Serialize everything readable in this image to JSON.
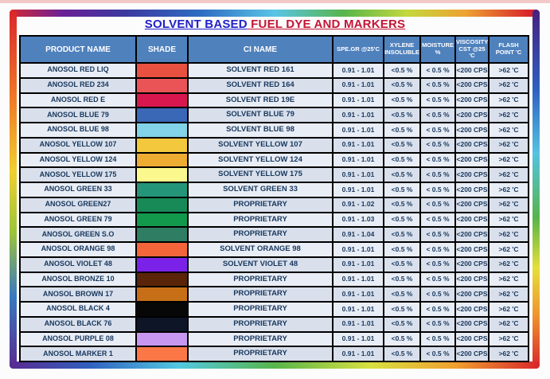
{
  "title": {
    "part1": "SOLVENT BASED",
    "part2": " FUEL DYE AND MARKERS"
  },
  "colors": {
    "title_blue": "#2121c9",
    "title_red": "#c41535",
    "header_bg": "#4f81bd",
    "header_text": "#ffffff",
    "row_odd_bg": "#e9edf5",
    "row_even_bg": "#d9e0ec",
    "cell_text": "#17375d",
    "grid_line": "#000000"
  },
  "table": {
    "headers": [
      "PRODUCT NAME",
      "SHADE",
      "CI NAME",
      "SPE.GR @25'C",
      "XYLENE INSOLUBLE",
      "MOISTURE %",
      "VISCOSITY CST @25 'C",
      "FLASH POINT 'C"
    ],
    "rows": [
      {
        "product": "ANOSOL RED LIQ",
        "shade": "#e8503f",
        "ci": "SOLVENT RED 161",
        "spe_gr": "0.91 - 1.01",
        "xylene": "<0.5 %",
        "moisture": "< 0.5 %",
        "viscosity": "<200 CPS",
        "flash": ">62 'C"
      },
      {
        "product": "ANOSOL RED  234",
        "shade": "#ea5456",
        "ci": "SOLVENT RED 164",
        "spe_gr": "0.91 - 1.01",
        "xylene": "<0.5 %",
        "moisture": "< 0.5 %",
        "viscosity": "<200 CPS",
        "flash": ">62 'C"
      },
      {
        "product": "ANOSOL RED E",
        "shade": "#d8174e",
        "ci": "SOLVENT RED 19E",
        "spe_gr": "0.91 - 1.01",
        "xylene": "<0.5 %",
        "moisture": "< 0.5 %",
        "viscosity": "<200 CPS",
        "flash": ">62 'C"
      },
      {
        "product": "ANOSOL BLUE 79",
        "shade": "#3a67b6",
        "ci": "SOLVENT BLUE 79",
        "spe_gr": "0.91 - 1.01",
        "xylene": "<0.5 %",
        "moisture": "< 0.5 %",
        "viscosity": "<200 CPS",
        "flash": ">62 'C"
      },
      {
        "product": "ANOSOL BLUE 98",
        "shade": "#82d2e8",
        "ci": "SOLVENT BLUE 98",
        "spe_gr": "0.91 - 1.01",
        "xylene": "<0.5 %",
        "moisture": "< 0.5 %",
        "viscosity": "<200 CPS",
        "flash": ">62 'C"
      },
      {
        "product": "ANOSOL YELLOW 107",
        "shade": "#f4c83c",
        "ci": "SOLVENT YELLOW 107",
        "spe_gr": "0.91 - 1.01",
        "xylene": "<0.5 %",
        "moisture": "< 0.5 %",
        "viscosity": "<200 CPS",
        "flash": ">62 'C"
      },
      {
        "product": "ANOSOL YELLOW 124",
        "shade": "#efac33",
        "ci": "SOLVENT YELLOW 124",
        "spe_gr": "0.91 - 1.01",
        "xylene": "<0.5 %",
        "moisture": "< 0.5 %",
        "viscosity": "<200 CPS",
        "flash": ">62 'C"
      },
      {
        "product": "ANOSOL YELLOW 175",
        "shade": "#fbf88e",
        "ci": "SOLVENT YELLOW 175",
        "spe_gr": "0.91 - 1.01",
        "xylene": "<0.5 %",
        "moisture": "< 0.5 %",
        "viscosity": "<200 CPS",
        "flash": ">62 'C"
      },
      {
        "product": "ANOSOL GREEN 33",
        "shade": "#249579",
        "ci": "SOLVENT GREEN 33",
        "spe_gr": "0.91 - 1.01",
        "xylene": "<0.5 %",
        "moisture": "< 0.5 %",
        "viscosity": "<200 CPS",
        "flash": ">62 'C"
      },
      {
        "product": "ANOSOL GREEN27",
        "shade": "#178a57",
        "ci": "PROPRIETARY",
        "spe_gr": "0.91 - 1.02",
        "xylene": "<0.5 %",
        "moisture": "< 0.5 %",
        "viscosity": "<200 CPS",
        "flash": ">62 'C"
      },
      {
        "product": "ANOSOL GREEN  79",
        "shade": "#12994c",
        "ci": "PROPRIETARY",
        "spe_gr": "0.91 - 1.03",
        "xylene": "<0.5 %",
        "moisture": "< 0.5 %",
        "viscosity": "<200 CPS",
        "flash": ">62 'C"
      },
      {
        "product": "ANOSOL GREEN S.O",
        "shade": "#2f7d63",
        "ci": "PROPRIETARY",
        "spe_gr": "0.91 - 1.04",
        "xylene": "<0.5 %",
        "moisture": "< 0.5 %",
        "viscosity": "<200 CPS",
        "flash": ">62 'C"
      },
      {
        "product": "ANOSOL ORANGE 98",
        "shade": "#f4663a",
        "ci": "SOLVENT ORANGE 98",
        "spe_gr": "0.91 - 1.01",
        "xylene": "<0.5 %",
        "moisture": "< 0.5 %",
        "viscosity": "<200 CPS",
        "flash": ">62 'C"
      },
      {
        "product": "ANOSOL VIOLET 48",
        "shade": "#7b22e8",
        "ci": "SOLVENT VIOLET 48",
        "spe_gr": "0.91 - 1.01",
        "xylene": "<0.5 %",
        "moisture": "< 0.5 %",
        "viscosity": "<200 CPS",
        "flash": ">62 'C"
      },
      {
        "product": "ANOSOL BRONZE 10",
        "shade": "#5a2408",
        "ci": "PROPRIETARY",
        "spe_gr": "0.91 - 1.01",
        "xylene": "<0.5 %",
        "moisture": "< 0.5 %",
        "viscosity": "<200 CPS",
        "flash": ">62 'C"
      },
      {
        "product": "ANOSOL BROWN 17",
        "shade": "#c76f16",
        "ci": "PROPRIETARY",
        "spe_gr": "0.91 - 1.01",
        "xylene": "<0.5 %",
        "moisture": "< 0.5 %",
        "viscosity": "<200 CPS",
        "flash": ">62 'C"
      },
      {
        "product": "ANOSOL BLACK 4",
        "shade": "#070707",
        "ci": "PROPRIETARY",
        "spe_gr": "0.91 - 1.01",
        "xylene": "<0.5 %",
        "moisture": "< 0.5 %",
        "viscosity": "<200 CPS",
        "flash": ">62 'C"
      },
      {
        "product": "ANOSOL BLACK 76",
        "shade": "#0d1526",
        "ci": "PROPRIETARY",
        "spe_gr": "0.91 - 1.01",
        "xylene": "<0.5 %",
        "moisture": "< 0.5 %",
        "viscosity": "<200 CPS",
        "flash": ">62 'C"
      },
      {
        "product": "ANOSOL  PURPLE 08",
        "shade": "#c897f0",
        "ci": "PROPRIETARY",
        "spe_gr": "0.91 - 1.01",
        "xylene": "<0.5 %",
        "moisture": "< 0.5 %",
        "viscosity": "<200 CPS",
        "flash": ">62 'C"
      },
      {
        "product": "ANOSOL MARKER 1",
        "shade": "#fb7846",
        "ci": "PROPRIETARY",
        "spe_gr": "0.91 - 1.01",
        "xylene": "<0.5 %",
        "moisture": "< 0.5 %",
        "viscosity": "<200 CPS",
        "flash": ">62 'C"
      }
    ]
  }
}
